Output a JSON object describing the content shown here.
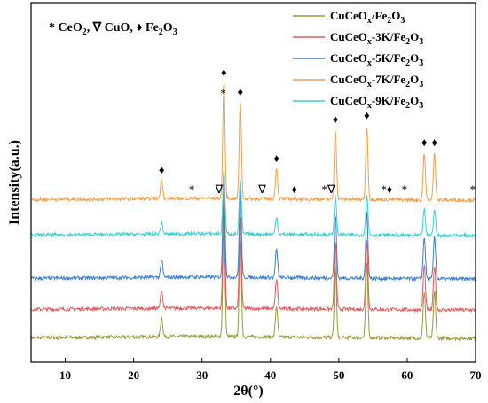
{
  "chart_data": {
    "type": "line",
    "xlabel": "2θ(°)",
    "ylabel": "Intensity(a.u.)",
    "xlim": [
      5,
      70
    ],
    "x_ticks": [
      10,
      20,
      30,
      40,
      50,
      60,
      70
    ],
    "y_ticks_shown": false,
    "grid": false,
    "legend_position": "top-right",
    "annotation_legend": {
      "ceo2": "* CeO",
      "ceo2_sub": "2",
      "cuo": ", ∇ CuO, ",
      "fe2o3_diamond": "♦",
      "fe2o3": " Fe",
      "fe2o3_sub1": "2",
      "fe2o3_o": "O",
      "fe2o3_sub2": "3"
    },
    "peaks_fe2o3": [
      24.1,
      33.2,
      35.6,
      40.9,
      49.5,
      54.1,
      62.5,
      64.0
    ],
    "peak_heights": [
      0.1,
      0.6,
      0.5,
      0.16,
      0.36,
      0.38,
      0.24,
      0.24
    ],
    "series": [
      {
        "name_main": "CuCeO",
        "name_sub1": "x",
        "name_mid": "/Fe",
        "name_sub2": "2",
        "name_end": "O",
        "name_sub3": "3",
        "color": "#9a9a3c",
        "baseline": 382,
        "scale": 1.0
      },
      {
        "name_main": "CuCeO",
        "name_sub1": "x",
        "name_mid": "-3K/Fe",
        "name_sub2": "2",
        "name_end": "O",
        "name_sub3": "3",
        "color": "#e45a5a",
        "baseline": 350,
        "scale": 0.95
      },
      {
        "name_main": "CuCeO",
        "name_sub1": "x",
        "name_mid": "-5K/Fe",
        "name_sub2": "2",
        "name_end": "O",
        "name_sub3": "3",
        "color": "#3e7fd1",
        "baseline": 315,
        "scale": 0.9
      },
      {
        "name_main": "CuCeO",
        "name_sub1": "x",
        "name_mid": "-7K/Fe",
        "name_sub2": "2",
        "name_end": "O",
        "name_sub3": "3",
        "color": "#f0a04c",
        "baseline": 226,
        "scale": 1.0
      },
      {
        "name_main": "CuCeO",
        "name_sub1": "x",
        "name_mid": "-9K/Fe",
        "name_sub2": "2",
        "name_end": "O",
        "name_sub3": "3",
        "color": "#3ad0d0",
        "baseline": 266,
        "scale": 0.55
      }
    ],
    "markers": [
      {
        "symbol": "♦",
        "x": 24.1,
        "type": "Fe2O3"
      },
      {
        "symbol": "♦",
        "x": 33.2,
        "type": "Fe2O3"
      },
      {
        "symbol": "♦",
        "x": 35.6,
        "type": "Fe2O3"
      },
      {
        "symbol": "♦",
        "x": 40.9,
        "type": "Fe2O3"
      },
      {
        "symbol": "♦",
        "x": 43.5,
        "type": "Fe2O3"
      },
      {
        "symbol": "♦",
        "x": 49.5,
        "type": "Fe2O3"
      },
      {
        "symbol": "♦",
        "x": 54.1,
        "type": "Fe2O3"
      },
      {
        "symbol": "♦",
        "x": 57.4,
        "type": "Fe2O3"
      },
      {
        "symbol": "♦",
        "x": 62.5,
        "type": "Fe2O3"
      },
      {
        "symbol": "♦",
        "x": 64.0,
        "type": "Fe2O3"
      },
      {
        "symbol": "*",
        "x": 28.5,
        "type": "CeO2"
      },
      {
        "symbol": "*",
        "x": 33.1,
        "type": "CeO2"
      },
      {
        "symbol": "*",
        "x": 47.9,
        "type": "CeO2"
      },
      {
        "symbol": "*",
        "x": 56.6,
        "type": "CeO2"
      },
      {
        "symbol": "*",
        "x": 59.6,
        "type": "CeO2"
      },
      {
        "symbol": "*",
        "x": 69.6,
        "type": "CeO2"
      },
      {
        "symbol": "∇",
        "x": 32.5,
        "type": "CuO"
      },
      {
        "symbol": "∇",
        "x": 38.8,
        "type": "CuO"
      },
      {
        "symbol": "∇",
        "x": 48.9,
        "type": "CuO"
      }
    ]
  }
}
